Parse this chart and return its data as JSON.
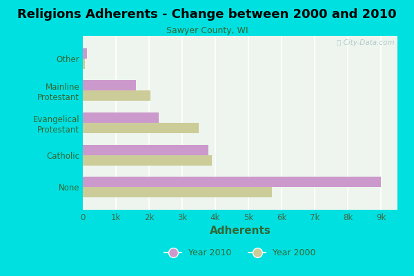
{
  "title": "Religions Adherents - Change between 2000 and 2010",
  "subtitle": "Sawyer County, WI",
  "xlabel": "Adherents",
  "categories": [
    "None",
    "Catholic",
    "Evangelical\nProtestant",
    "Mainline\nProtestant",
    "Other"
  ],
  "values_2010": [
    9000,
    3800,
    2300,
    1600,
    130
  ],
  "values_2000": [
    5700,
    3900,
    3500,
    2050,
    70
  ],
  "color_2010": "#cc99cc",
  "color_2000": "#cccc99",
  "background_outer": "#00e0e0",
  "background_inner": "#eef5ee",
  "title_fontsize": 13,
  "subtitle_fontsize": 9,
  "xlabel_fontsize": 11,
  "xtick_labels": [
    "0",
    "1k",
    "2k",
    "3k",
    "4k",
    "5k",
    "6k",
    "7k",
    "8k",
    "9k"
  ],
  "xtick_values": [
    0,
    1000,
    2000,
    3000,
    4000,
    5000,
    6000,
    7000,
    8000,
    9000
  ],
  "xlim": [
    0,
    9500
  ],
  "legend_labels": [
    "Year 2010",
    "Year 2000"
  ],
  "watermark": "ⓘ City-Data.com"
}
